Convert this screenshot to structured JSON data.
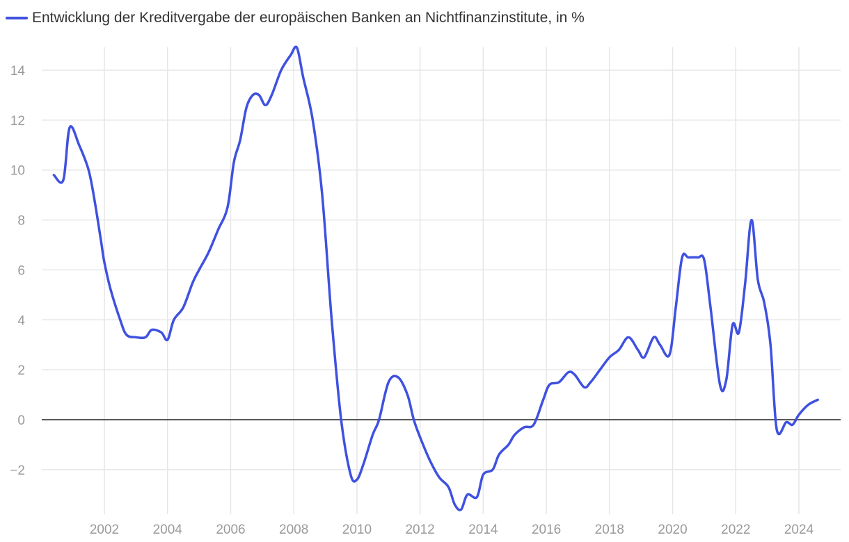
{
  "chart_data": {
    "type": "line",
    "title": "",
    "legend": [
      "Entwicklung der Kreditvergabe der europäischen Banken an Nichtfinanzinstitute, in %"
    ],
    "legend_placement": "top-left",
    "xlabel": "",
    "ylabel": "",
    "grid": true,
    "zero_line": true,
    "xlim": [
      2000.0,
      2025.4
    ],
    "ylim": [
      -3.6,
      15.0
    ],
    "xticks": [
      "2002",
      "2004",
      "2006",
      "2008",
      "2010",
      "2012",
      "2014",
      "2016",
      "2018",
      "2020",
      "2022",
      "2024"
    ],
    "yticks": [
      "14",
      "12",
      "10",
      "8",
      "6",
      "4",
      "2",
      "0",
      "−2"
    ],
    "series": [
      {
        "name": "Entwicklung der Kreditvergabe der europäischen Banken an Nichtfinanzinstitute, in %",
        "color": "#3f51e0",
        "x": [
          2000.4,
          2000.7,
          2000.9,
          2001.2,
          2001.5,
          2001.7,
          2001.9,
          2002.0,
          2002.2,
          2002.5,
          2002.7,
          2003.0,
          2003.3,
          2003.5,
          2003.8,
          2004.0,
          2004.2,
          2004.5,
          2004.8,
          2005.0,
          2005.3,
          2005.6,
          2005.9,
          2006.1,
          2006.3,
          2006.5,
          2006.7,
          2006.9,
          2007.1,
          2007.3,
          2007.6,
          2007.9,
          2008.1,
          2008.3,
          2008.6,
          2008.9,
          2009.2,
          2009.5,
          2009.8,
          2010.0,
          2010.2,
          2010.5,
          2010.7,
          2011.0,
          2011.3,
          2011.6,
          2011.8,
          2012.0,
          2012.3,
          2012.6,
          2012.9,
          2013.1,
          2013.3,
          2013.5,
          2013.8,
          2014.0,
          2014.3,
          2014.5,
          2014.8,
          2015.0,
          2015.3,
          2015.6,
          2015.9,
          2016.1,
          2016.4,
          2016.7,
          2016.9,
          2017.2,
          2017.4,
          2017.7,
          2018.0,
          2018.3,
          2018.6,
          2018.9,
          2019.1,
          2019.4,
          2019.6,
          2019.9,
          2020.1,
          2020.3,
          2020.5,
          2020.8,
          2021.0,
          2021.2,
          2021.5,
          2021.7,
          2021.9,
          2022.1,
          2022.3,
          2022.5,
          2022.7,
          2022.9,
          2023.1,
          2023.3,
          2023.6,
          2023.8,
          2024.0,
          2024.3,
          2024.6,
          2024.8,
          2025.0
        ],
        "values": [
          9.8,
          9.6,
          11.7,
          11.0,
          10.0,
          8.7,
          7.1,
          6.3,
          5.2,
          4.0,
          3.4,
          3.3,
          3.3,
          3.6,
          3.5,
          3.2,
          4.0,
          4.5,
          5.5,
          6.0,
          6.7,
          7.6,
          8.5,
          10.3,
          11.2,
          12.5,
          13.0,
          13.0,
          12.6,
          13.0,
          14.0,
          14.6,
          14.9,
          13.7,
          12.0,
          9.0,
          4.0,
          0.0,
          -2.2,
          -2.4,
          -1.8,
          -0.6,
          0.0,
          1.5,
          1.7,
          1.0,
          0.0,
          -0.7,
          -1.6,
          -2.3,
          -2.7,
          -3.4,
          -3.6,
          -3.0,
          -3.1,
          -2.2,
          -2.0,
          -1.4,
          -1.0,
          -0.6,
          -0.3,
          -0.2,
          0.8,
          1.4,
          1.5,
          1.9,
          1.8,
          1.3,
          1.5,
          2.0,
          2.5,
          2.8,
          3.3,
          2.8,
          2.5,
          3.3,
          3.0,
          2.6,
          4.5,
          6.5,
          6.5,
          6.5,
          6.4,
          4.5,
          1.4,
          1.6,
          3.8,
          3.5,
          5.5,
          8.0,
          5.6,
          4.7,
          3.0,
          -0.4,
          -0.1,
          -0.2,
          0.2,
          0.6,
          0.8,
          null,
          null
        ]
      }
    ]
  }
}
